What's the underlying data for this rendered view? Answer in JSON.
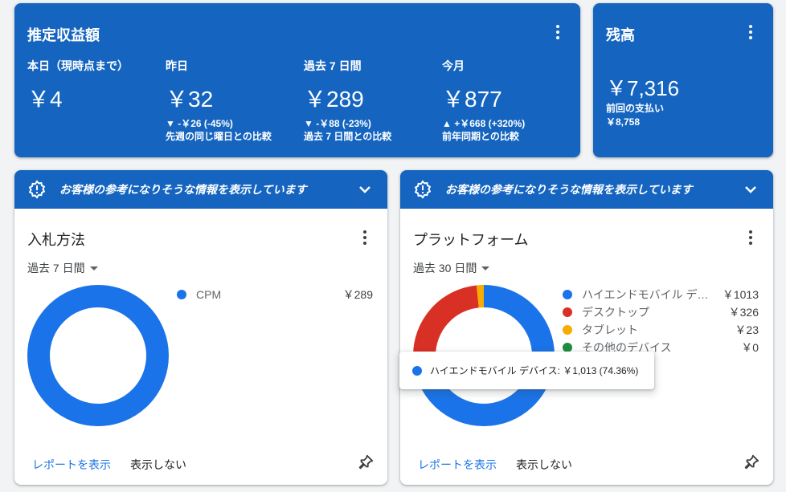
{
  "earnings": {
    "title": "推定収益額",
    "metrics": [
      {
        "label": "本日（現時点まで）",
        "value": "￥4",
        "delta": "",
        "compare": ""
      },
      {
        "label": "昨日",
        "value": "￥32",
        "delta": "▼ -￥26 (-45%)",
        "compare": "先週の同じ曜日との比較"
      },
      {
        "label": "過去 7 日間",
        "value": "￥289",
        "delta": "▼ -￥88 (-23%)",
        "compare": "過去 7 日間との比較"
      },
      {
        "label": "今月",
        "value": "￥877",
        "delta": "▲ +￥668 (+320%)",
        "compare": "前年同期との比較"
      }
    ]
  },
  "balance": {
    "title": "残高",
    "value": "￥7,316",
    "last_payment_label": "前回の支払い",
    "last_payment_value": "￥8,758"
  },
  "bid_card": {
    "banner": "お客様の参考になりそうな情報を表示しています",
    "title": "入札方法",
    "range": "過去 7 日間",
    "legend": [
      {
        "name": "CPM",
        "amount": "￥289",
        "color": "#1a73e8"
      }
    ],
    "view_report": "レポートを表示",
    "hide": "表示しない"
  },
  "platform_card": {
    "banner": "お客様の参考になりそうな情報を表示しています",
    "title": "プラットフォーム",
    "range": "過去 30 日間",
    "legend": [
      {
        "name": "ハイエンドモバイル デバイス",
        "amount": "￥1013",
        "color": "#1a73e8"
      },
      {
        "name": "デスクトップ",
        "amount": "￥326",
        "color": "#d93025"
      },
      {
        "name": "タブレット",
        "amount": "￥23",
        "color": "#f9ab00"
      },
      {
        "name": "その他のデバイス",
        "amount": "￥0",
        "color": "#1e8e3e"
      }
    ],
    "tooltip": "ハイエンドモバイル デバイス: ￥1,013 (74.36%)",
    "view_report": "レポートを表示",
    "hide": "表示しない"
  },
  "chart_data": [
    {
      "type": "pie",
      "categories": [
        "CPM"
      ],
      "values": [
        289
      ],
      "title": ""
    },
    {
      "type": "pie",
      "categories": [
        "ハイエンドモバイル デバイス",
        "デスクトップ",
        "タブレット",
        "その他のデバイス"
      ],
      "values": [
        1013,
        326,
        23,
        0
      ],
      "title": ""
    }
  ]
}
